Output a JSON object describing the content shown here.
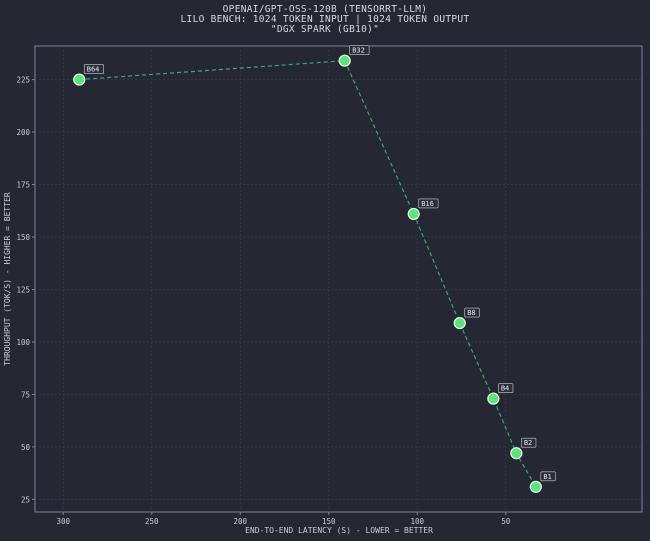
{
  "title_lines": [
    "OPENAI/GPT-OSS-120B (TENSORRT-LLM)",
    "LILO BENCH: 1024 TOKEN INPUT | 1024 TOKEN OUTPUT",
    "\"DGX SPARK (GB10)\""
  ],
  "colors": {
    "background": "#252833",
    "frame": "#7e8494",
    "grid": "#3a3e4c",
    "line": "#3aa574",
    "marker_fill": "#5be37e",
    "marker_stroke": "#e8ffe8",
    "text": "#c9ccd4",
    "label_box": "#2a2e3a"
  },
  "chart_data": {
    "type": "scatter",
    "xlabel": "END-TO-END LATENCY (S) - LOWER = BETTER",
    "ylabel": "THROUGHPUT (TOK/S) - HIGHER = BETTER",
    "x_inverted": true,
    "xlim": [
      316,
      -27
    ],
    "ylim": [
      19,
      241
    ],
    "x_ticks": [
      300,
      250,
      200,
      150,
      100,
      50
    ],
    "y_ticks": [
      25,
      50,
      75,
      100,
      125,
      150,
      175,
      200,
      225
    ],
    "grid": true,
    "series": [
      {
        "line_style": "dashed",
        "points": [
          {
            "label": "B64",
            "x": 291,
            "y": 225
          },
          {
            "label": "B32",
            "x": 141,
            "y": 234
          },
          {
            "label": "B16",
            "x": 102,
            "y": 161
          },
          {
            "label": "B8",
            "x": 76,
            "y": 109
          },
          {
            "label": "B4",
            "x": 57,
            "y": 73
          },
          {
            "label": "B2",
            "x": 44,
            "y": 47
          },
          {
            "label": "B1",
            "x": 33,
            "y": 31
          }
        ]
      }
    ]
  }
}
